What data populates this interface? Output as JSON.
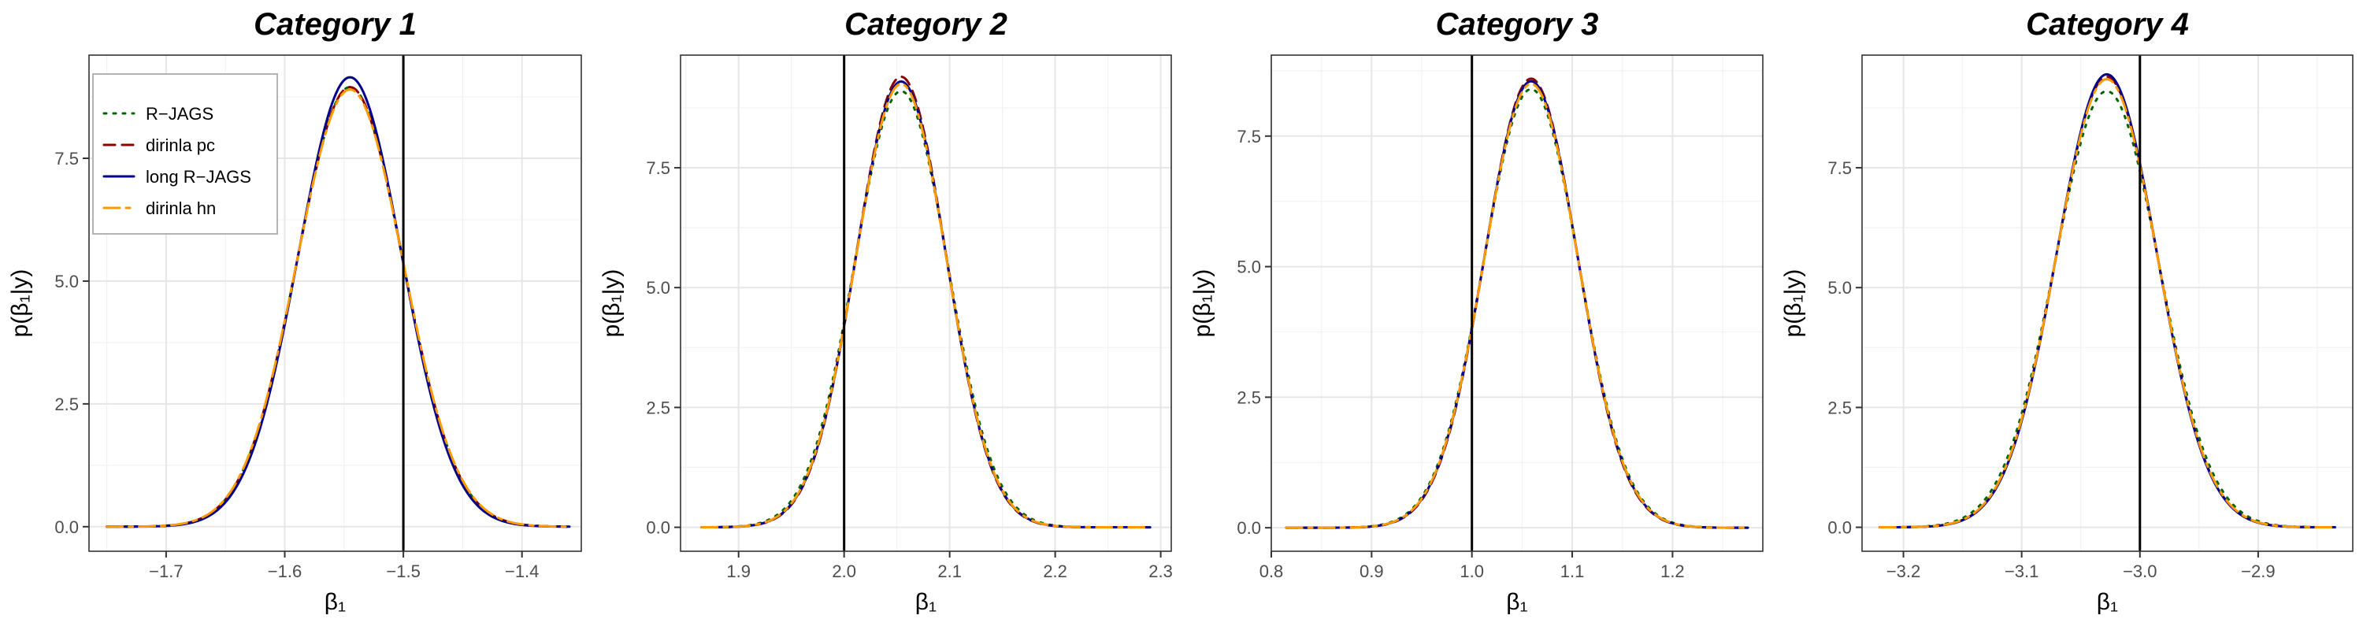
{
  "chart_data": [
    {
      "type": "line",
      "title": "Category 1",
      "xlabel": "β₁",
      "ylabel": "p(β₁|y)",
      "xlim": [
        -1.765,
        -1.35
      ],
      "ylim": [
        -0.5,
        9.6
      ],
      "xticks": [
        -1.7,
        -1.6,
        -1.5,
        -1.4
      ],
      "xtick_labels": [
        "−1.7",
        "−1.6",
        "−1.5",
        "−1.4"
      ],
      "yticks": [
        0,
        2.5,
        5,
        7.5
      ],
      "ytick_labels": [
        "0.0",
        "2.5",
        "5.0",
        "7.5"
      ],
      "true_value": -1.5,
      "curve": {
        "x_start": -1.75,
        "x_end": -1.36
      },
      "series": [
        {
          "name": "R−JAGS",
          "mean": -1.545,
          "sd": 0.0445,
          "peak": 8.95,
          "color": "#006400",
          "style": "dotted"
        },
        {
          "name": "dirinla pc",
          "mean": -1.545,
          "sd": 0.0445,
          "peak": 8.95,
          "color": "#8b0000",
          "style": "dashed"
        },
        {
          "name": "long R−JAGS",
          "mean": -1.545,
          "sd": 0.0435,
          "peak": 9.15,
          "color": "#00008b",
          "style": "solid"
        },
        {
          "name": "dirinla hn",
          "mean": -1.545,
          "sd": 0.0448,
          "peak": 8.9,
          "color": "#ff9900",
          "style": "longdash"
        }
      ],
      "legend": "top-left",
      "grid": true
    },
    {
      "type": "line",
      "title": "Category 2",
      "xlabel": "β₁",
      "ylabel": "p(β₁|y)",
      "xlim": [
        1.845,
        2.31
      ],
      "ylim": [
        -0.5,
        9.85
      ],
      "xticks": [
        1.9,
        2.0,
        2.1,
        2.2,
        2.3
      ],
      "xtick_labels": [
        "1.9",
        "2.0",
        "2.1",
        "2.2",
        "2.3"
      ],
      "yticks": [
        0,
        2.5,
        5,
        7.5
      ],
      "ytick_labels": [
        "0.0",
        "2.5",
        "5.0",
        "7.5"
      ],
      "true_value": 2.0,
      "curve": {
        "x_start": 1.865,
        "x_end": 2.29
      },
      "series": [
        {
          "name": "R−JAGS",
          "mean": 2.054,
          "sd": 0.044,
          "peak": 9.1,
          "color": "#006400",
          "style": "dotted"
        },
        {
          "name": "dirinla pc",
          "mean": 2.054,
          "sd": 0.0425,
          "peak": 9.4,
          "color": "#8b0000",
          "style": "dashed"
        },
        {
          "name": "long R−JAGS",
          "mean": 2.054,
          "sd": 0.0428,
          "peak": 9.3,
          "color": "#00008b",
          "style": "solid"
        },
        {
          "name": "dirinla hn",
          "mean": 2.054,
          "sd": 0.043,
          "peak": 9.25,
          "color": "#ff9900",
          "style": "longdash"
        }
      ],
      "grid": true
    },
    {
      "type": "line",
      "title": "Category 3",
      "xlabel": "β₁",
      "ylabel": "p(β₁|y)",
      "xlim": [
        0.8,
        1.29
      ],
      "ylim": [
        -0.45,
        9.05
      ],
      "xticks": [
        0.8,
        0.9,
        1.0,
        1.1,
        1.2
      ],
      "xtick_labels": [
        "0.8",
        "0.9",
        "1.0",
        "1.1",
        "1.2"
      ],
      "yticks": [
        0,
        2.5,
        5,
        7.5
      ],
      "ytick_labels": [
        "0.0",
        "2.5",
        "5.0",
        "7.5"
      ],
      "true_value": 1.0,
      "curve": {
        "x_start": 0.815,
        "x_end": 1.275
      },
      "series": [
        {
          "name": "R−JAGS",
          "mean": 1.059,
          "sd": 0.0473,
          "peak": 8.4,
          "color": "#006400",
          "style": "dotted"
        },
        {
          "name": "dirinla pc",
          "mean": 1.059,
          "sd": 0.0462,
          "peak": 8.6,
          "color": "#8b0000",
          "style": "dashed"
        },
        {
          "name": "long R−JAGS",
          "mean": 1.059,
          "sd": 0.0465,
          "peak": 8.55,
          "color": "#00008b",
          "style": "solid"
        },
        {
          "name": "dirinla hn",
          "mean": 1.059,
          "sd": 0.0467,
          "peak": 8.5,
          "color": "#ff9900",
          "style": "longdash"
        }
      ],
      "grid": true
    },
    {
      "type": "line",
      "title": "Category 4",
      "xlabel": "β₁",
      "ylabel": "p(β₁|y)",
      "xlim": [
        -3.235,
        -2.82
      ],
      "ylim": [
        -0.5,
        9.85
      ],
      "xticks": [
        -3.2,
        -3.1,
        -3.0,
        -2.9
      ],
      "xtick_labels": [
        "−3.2",
        "−3.1",
        "−3.0",
        "−2.9"
      ],
      "yticks": [
        0,
        2.5,
        5,
        7.5
      ],
      "ytick_labels": [
        "0.0",
        "2.5",
        "5.0",
        "7.5"
      ],
      "true_value": -3.0,
      "curve": {
        "x_start": -3.22,
        "x_end": -2.835
      },
      "series": [
        {
          "name": "R−JAGS",
          "mean": -3.028,
          "sd": 0.0439,
          "peak": 9.1,
          "color": "#006400",
          "style": "dotted"
        },
        {
          "name": "dirinla pc",
          "mean": -3.028,
          "sd": 0.0425,
          "peak": 9.4,
          "color": "#8b0000",
          "style": "dashed"
        },
        {
          "name": "long R−JAGS",
          "mean": -3.028,
          "sd": 0.0423,
          "peak": 9.45,
          "color": "#00008b",
          "style": "solid"
        },
        {
          "name": "dirinla hn",
          "mean": -3.028,
          "sd": 0.0427,
          "peak": 9.35,
          "color": "#ff9900",
          "style": "longdash"
        }
      ],
      "grid": true
    }
  ]
}
